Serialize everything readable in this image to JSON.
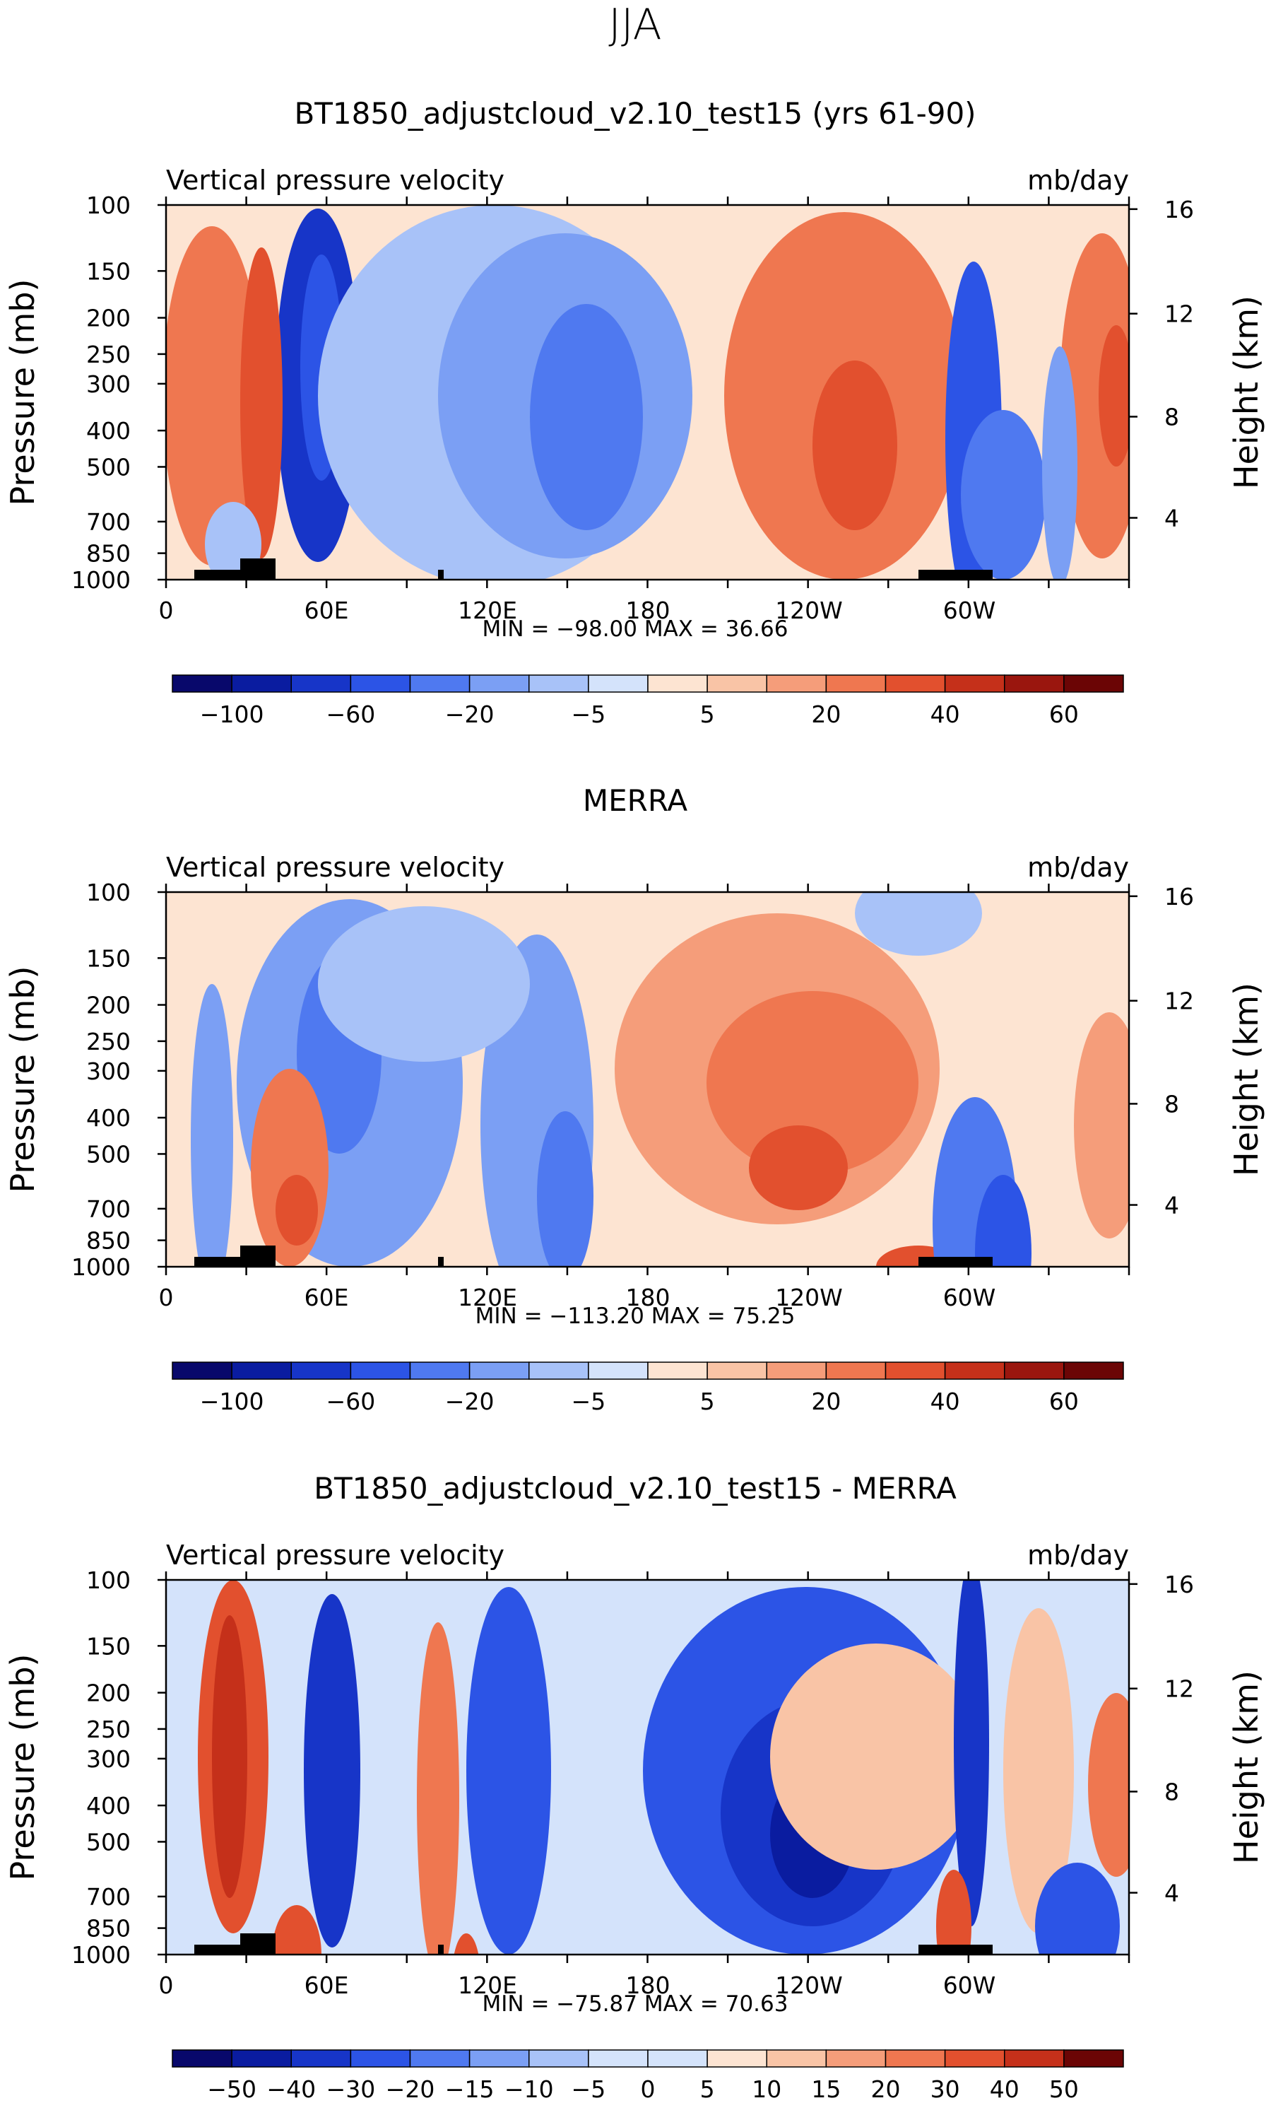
{
  "season": "JJA",
  "chart_data": [
    {
      "type": "heatmap",
      "title": "BT1850_adjustcloud_v2.10_test15 (yrs 61-90)",
      "left_label": "Vertical pressure velocity",
      "right_label": "mb/day",
      "ylabel": "Pressure (mb)",
      "y2label": "Height (km)",
      "yticks": [
        "100",
        "150",
        "200",
        "250",
        "300",
        "400",
        "500",
        "700",
        "850",
        "1000"
      ],
      "y2ticks": [
        "16",
        "12",
        "8",
        "4"
      ],
      "xticks": [
        "0",
        "60E",
        "120E",
        "180",
        "120W",
        "60W"
      ],
      "stats": "MIN = −98.00   MAX =  36.66",
      "colorbar_labels": [
        "−100",
        "−60",
        "−20",
        "−5",
        "5",
        "20",
        "40",
        "60"
      ]
    },
    {
      "type": "heatmap",
      "title": "MERRA",
      "left_label": "Vertical pressure velocity",
      "right_label": "mb/day",
      "ylabel": "Pressure (mb)",
      "y2label": "Height (km)",
      "yticks": [
        "100",
        "150",
        "200",
        "250",
        "300",
        "400",
        "500",
        "700",
        "850",
        "1000"
      ],
      "y2ticks": [
        "16",
        "12",
        "8",
        "4"
      ],
      "xticks": [
        "0",
        "60E",
        "120E",
        "180",
        "120W",
        "60W"
      ],
      "stats": "MIN = −113.20   MAX =  75.25",
      "colorbar_labels": [
        "−100",
        "−60",
        "−20",
        "−5",
        "5",
        "20",
        "40",
        "60"
      ]
    },
    {
      "type": "heatmap",
      "title": "BT1850_adjustcloud_v2.10_test15 - MERRA",
      "left_label": "Vertical pressure velocity",
      "right_label": "mb/day",
      "ylabel": "Pressure (mb)",
      "y2label": "Height (km)",
      "yticks": [
        "100",
        "150",
        "200",
        "250",
        "300",
        "400",
        "500",
        "700",
        "850",
        "1000"
      ],
      "y2ticks": [
        "16",
        "12",
        "8",
        "4"
      ],
      "xticks": [
        "0",
        "60E",
        "120E",
        "180",
        "120W",
        "60W"
      ],
      "stats": "MIN = −75.87   MAX =  70.63",
      "colorbar_labels": [
        "−50",
        "−40",
        "−30",
        "−20",
        "−15",
        "−10",
        "−5",
        "0",
        "5",
        "10",
        "15",
        "20",
        "30",
        "40",
        "50"
      ]
    }
  ],
  "colorbar_colors": [
    "#08086b",
    "#0a1ca0",
    "#1735c8",
    "#2c54e6",
    "#4f79f0",
    "#7b9ff4",
    "#a8c2f8",
    "#d4e3fb",
    "#fde4d2",
    "#f9c4a6",
    "#f59d7a",
    "#ef7750",
    "#e2502e",
    "#c5301a",
    "#9a160e",
    "#6b0505"
  ]
}
